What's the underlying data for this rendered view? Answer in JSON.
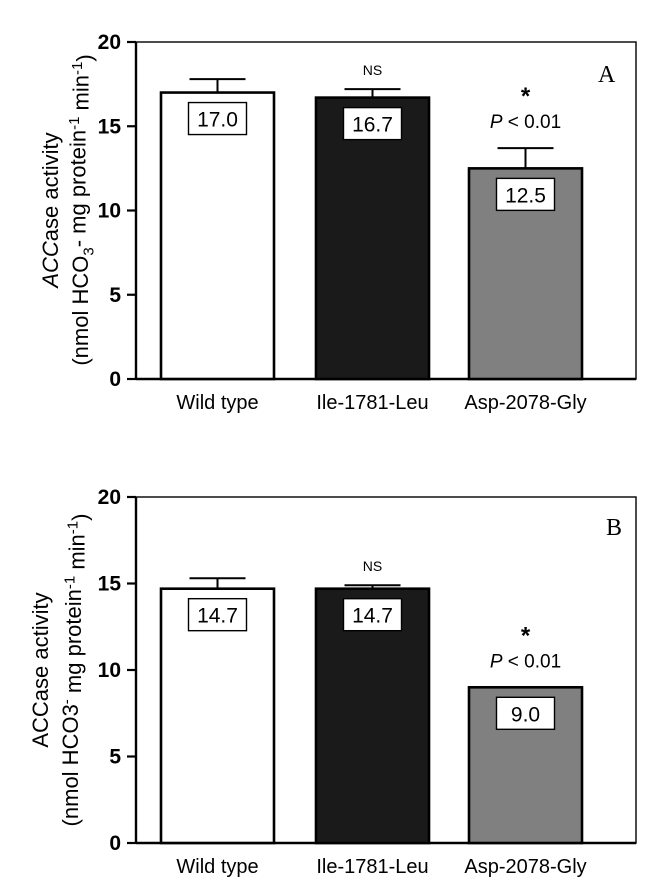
{
  "chart_data": [
    {
      "type": "bar",
      "panel_label": "A",
      "ylabel_parts": [
        {
          "t": "ACC",
          "style": "italic"
        },
        {
          "t": "ase activity"
        }
      ],
      "ylabel2_parts": [
        {
          "t": "(nmol HCO"
        },
        {
          "t": "3",
          "shift": "sub"
        },
        {
          "t": "- mg protein"
        },
        {
          "t": "-1",
          "shift": "super"
        },
        {
          "t": " min"
        },
        {
          "t": "-1",
          "shift": "super"
        },
        {
          "t": ")"
        }
      ],
      "ylim": [
        0,
        20
      ],
      "yticks": [
        "0",
        "5",
        "10",
        "15",
        "20"
      ],
      "categories": [
        "Wild type",
        "Ile-1781-Leu",
        "Asp-2078-Gly"
      ],
      "values": [
        17.0,
        16.7,
        12.5
      ],
      "errors": [
        0.8,
        0.5,
        1.2
      ],
      "value_labels": [
        "17.0",
        "16.7",
        "12.5"
      ],
      "bar_colors": [
        "#ffffff",
        "#1a1a1a",
        "#808080"
      ],
      "annotations": [
        {
          "category": "Ile-1781-Leu",
          "text": "NS"
        },
        {
          "category": "Asp-2078-Gly",
          "star": "*",
          "p_text": [
            {
              "t": "P",
              "style": "italic"
            },
            {
              "t": " < 0.01"
            }
          ]
        }
      ]
    },
    {
      "type": "bar",
      "panel_label": "B",
      "ylabel_parts": [
        {
          "t": "ACCase activity"
        }
      ],
      "ylabel2_parts": [
        {
          "t": "(nmol HCO3"
        },
        {
          "t": "-",
          "shift": "super"
        },
        {
          "t": " mg protein"
        },
        {
          "t": "-1",
          "shift": "super"
        },
        {
          "t": " min"
        },
        {
          "t": "-1",
          "shift": "super"
        },
        {
          "t": ")"
        }
      ],
      "ylim": [
        0,
        20
      ],
      "yticks": [
        "0",
        "5",
        "10",
        "15",
        "20"
      ],
      "categories": [
        "Wild type",
        "Ile-1781-Leu",
        "Asp-2078-Gly"
      ],
      "values": [
        14.7,
        14.7,
        9.0
      ],
      "errors": [
        0.6,
        0.2,
        0.0
      ],
      "value_labels": [
        "14.7",
        "14.7",
        "9.0"
      ],
      "bar_colors": [
        "#ffffff",
        "#1a1a1a",
        "#808080"
      ],
      "annotations": [
        {
          "category": "Ile-1781-Leu",
          "text": "NS"
        },
        {
          "category": "Asp-2078-Gly",
          "star": "*",
          "p_text": [
            {
              "t": "P",
              "style": "italic"
            },
            {
              "t": " < 0.01"
            }
          ]
        }
      ]
    }
  ]
}
